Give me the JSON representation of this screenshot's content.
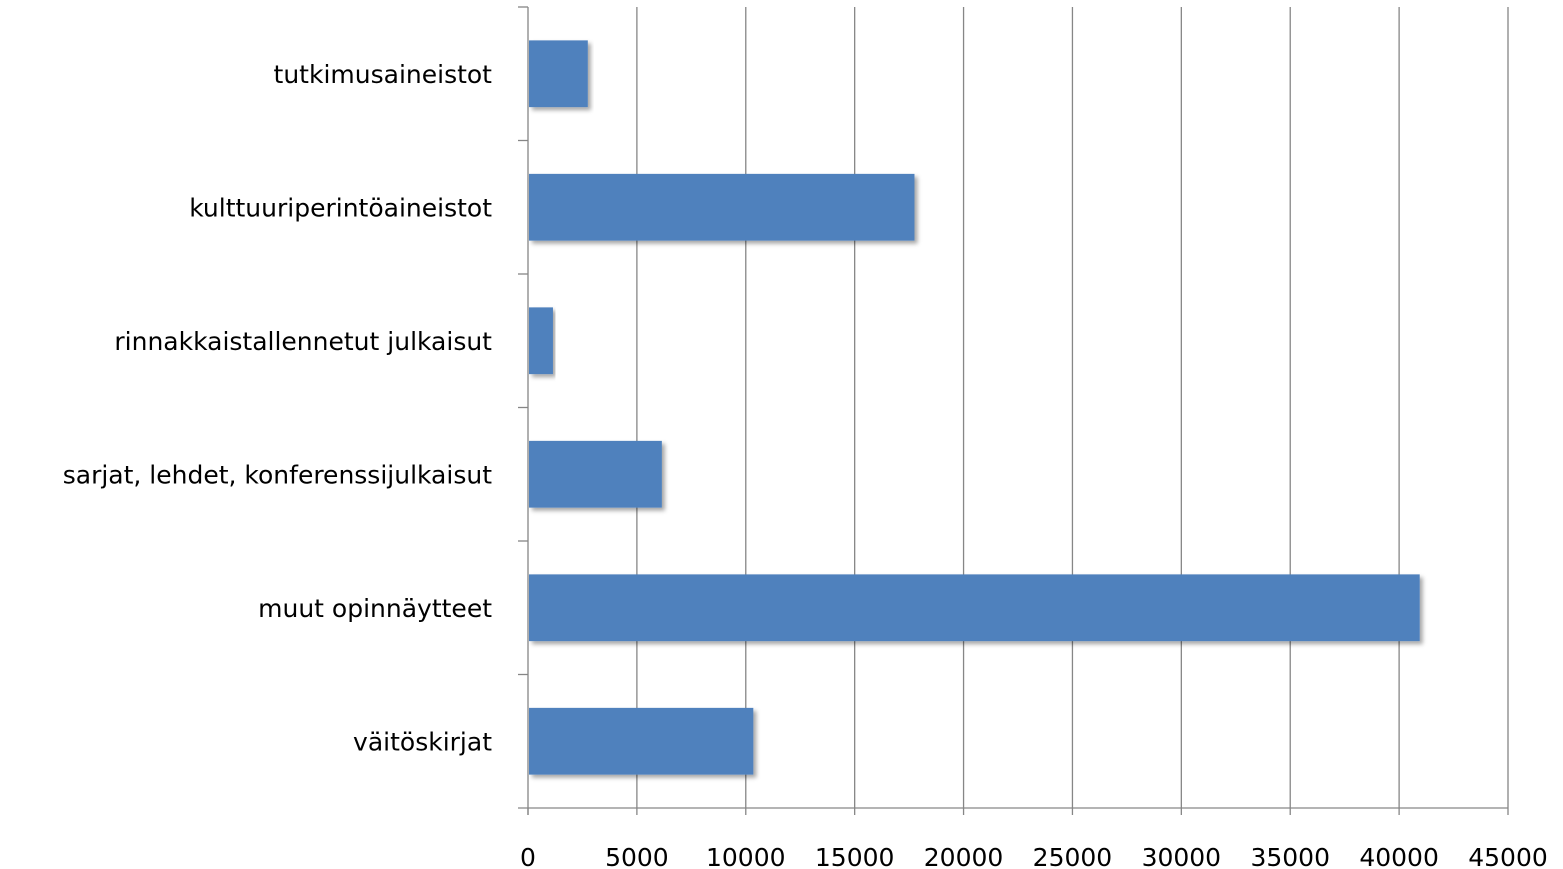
{
  "chart_data": {
    "type": "bar",
    "orientation": "horizontal",
    "categories": [
      "tutkimusaineistot",
      "kulttuuriperintöaineistot",
      "rinnakkaistallennetut  julkaisut",
      "sarjat, lehdet,  konferenssijulkaisut",
      "muut opinnäytteet",
      "väitöskirjat"
    ],
    "values": [
      2700,
      17700,
      1100,
      6100,
      40900,
      10300
    ],
    "xlim": [
      0,
      45000
    ],
    "xticks": [
      "0",
      "5000",
      "10000",
      "15000",
      "20000",
      "25000",
      "30000",
      "35000",
      "40000",
      "45000"
    ],
    "grid": true,
    "legend": "none",
    "bar_color": "#4F81BD"
  }
}
